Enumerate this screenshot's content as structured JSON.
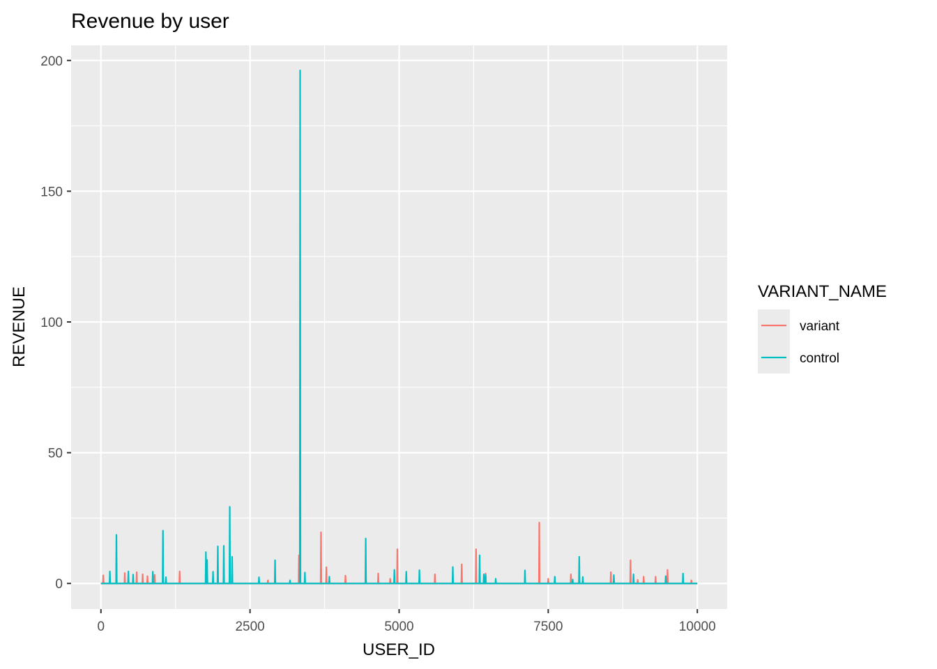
{
  "chart_data": {
    "type": "line",
    "title": "Revenue by user",
    "xlabel": "USER_ID",
    "ylabel": "REVENUE",
    "xlim": [
      -500,
      10500
    ],
    "ylim": [
      -9.8,
      205.8
    ],
    "x_ticks": [
      0,
      2500,
      5000,
      7500,
      10000
    ],
    "x_tick_labels": [
      "0",
      "2500",
      "5000",
      "7500",
      "10000"
    ],
    "y_ticks": [
      0,
      50,
      100,
      150,
      200
    ],
    "y_tick_labels": [
      "0",
      "50",
      "100",
      "150",
      "200"
    ],
    "grid": true,
    "legend": {
      "title": "VARIANT_NAME",
      "position": "right"
    },
    "series": [
      {
        "name": "variant",
        "color": "#F8766D",
        "spikes": [
          [
            40,
            3.1
          ],
          [
            400,
            4.0
          ],
          [
            600,
            4.3
          ],
          [
            700,
            3.5
          ],
          [
            780,
            2.8
          ],
          [
            900,
            3.3
          ],
          [
            1320,
            4.6
          ],
          [
            2800,
            1.2
          ],
          [
            3320,
            10.8
          ],
          [
            3690,
            19.6
          ],
          [
            3780,
            6.2
          ],
          [
            4100,
            3.0
          ],
          [
            4650,
            3.8
          ],
          [
            4850,
            1.8
          ],
          [
            4970,
            13.1
          ],
          [
            5600,
            3.5
          ],
          [
            6050,
            7.3
          ],
          [
            6290,
            13.1
          ],
          [
            6450,
            3.8
          ],
          [
            7350,
            23.3
          ],
          [
            7500,
            1.8
          ],
          [
            7880,
            3.5
          ],
          [
            8550,
            4.3
          ],
          [
            8880,
            8.9
          ],
          [
            9000,
            1.4
          ],
          [
            9100,
            2.6
          ],
          [
            9300,
            2.6
          ],
          [
            9500,
            5.2
          ],
          [
            9900,
            1.2
          ]
        ]
      },
      {
        "name": "control",
        "color": "#00BFC4",
        "spikes": [
          [
            150,
            4.6
          ],
          [
            260,
            18.6
          ],
          [
            460,
            4.6
          ],
          [
            540,
            3.4
          ],
          [
            870,
            4.5
          ],
          [
            1040,
            20.2
          ],
          [
            1090,
            2.4
          ],
          [
            1760,
            12.0
          ],
          [
            1780,
            9.0
          ],
          [
            1880,
            4.5
          ],
          [
            1960,
            14.2
          ],
          [
            2060,
            14.4
          ],
          [
            2160,
            29.3
          ],
          [
            2200,
            10.2
          ],
          [
            2650,
            2.4
          ],
          [
            2920,
            8.9
          ],
          [
            3170,
            1.2
          ],
          [
            3340,
            196.2
          ],
          [
            3420,
            4.2
          ],
          [
            3830,
            2.6
          ],
          [
            4440,
            17.2
          ],
          [
            4920,
            5.2
          ],
          [
            5120,
            4.5
          ],
          [
            5340,
            5.1
          ],
          [
            5900,
            6.3
          ],
          [
            6350,
            10.8
          ],
          [
            6420,
            3.5
          ],
          [
            6450,
            3.2
          ],
          [
            6620,
            1.8
          ],
          [
            7110,
            5.0
          ],
          [
            7610,
            2.6
          ],
          [
            7910,
            1.5
          ],
          [
            8020,
            10.2
          ],
          [
            8080,
            2.5
          ],
          [
            8600,
            3.2
          ],
          [
            8930,
            3.5
          ],
          [
            9470,
            2.8
          ],
          [
            9760,
            3.8
          ]
        ]
      }
    ]
  }
}
